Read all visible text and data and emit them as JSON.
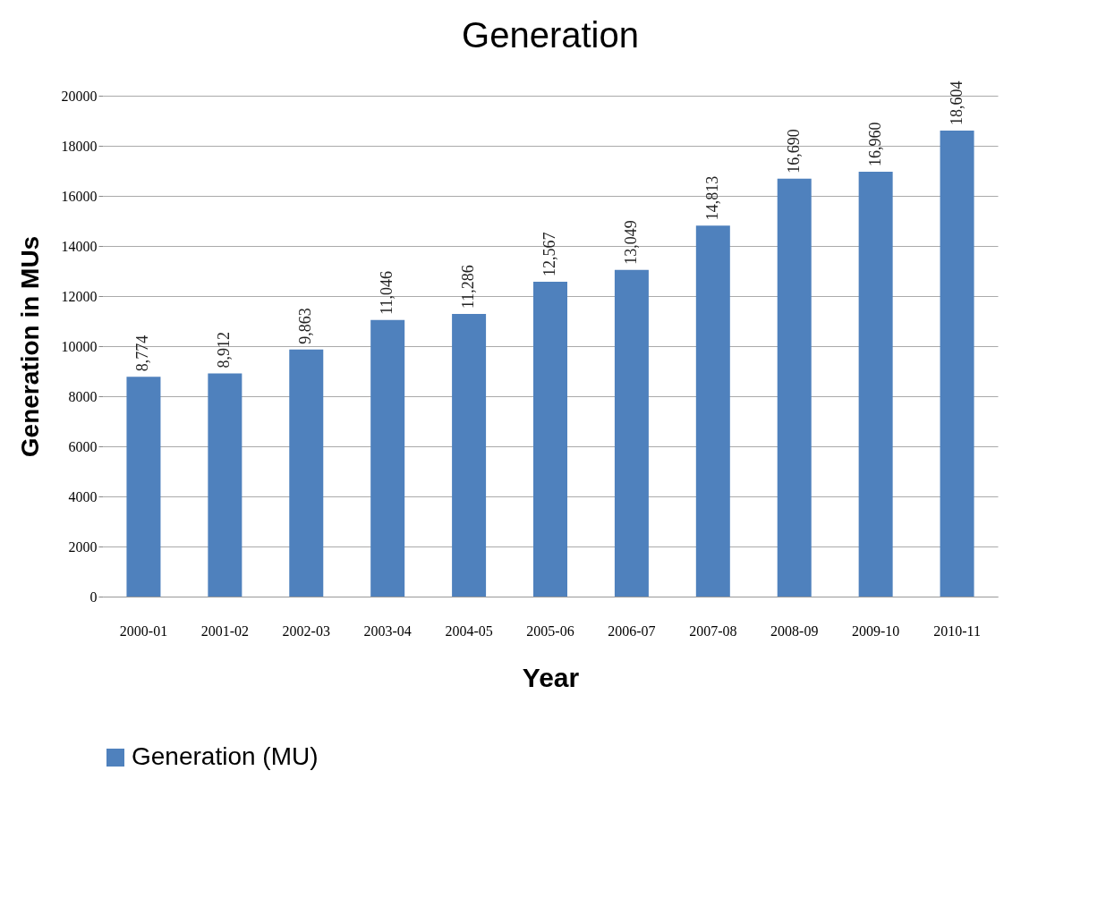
{
  "chart_data": {
    "type": "bar",
    "title": "Generation",
    "xlabel": "Year",
    "ylabel": "Generation in MUs",
    "categories": [
      "2000-01",
      "2001-02",
      "2002-03",
      "2003-04",
      "2004-05",
      "2005-06",
      "2006-07",
      "2007-08",
      "2008-09",
      "2009-10",
      "2010-11"
    ],
    "series": [
      {
        "name": "Generation (MU)",
        "color": "#4f81bd",
        "values": [
          8774,
          8912,
          9863,
          11046,
          11286,
          12567,
          13049,
          14813,
          16690,
          16960,
          18604
        ],
        "value_labels": [
          "8,774",
          "8,912",
          "9,863",
          "11,046",
          "11,286",
          "12,567",
          "13,049",
          "14,813",
          "16,690",
          "16,960",
          "18,604"
        ]
      }
    ],
    "ylim": [
      0,
      20000
    ],
    "yticks": [
      0,
      2000,
      4000,
      6000,
      8000,
      10000,
      12000,
      14000,
      16000,
      18000,
      20000
    ],
    "grid": "y",
    "legend": "bottom"
  }
}
